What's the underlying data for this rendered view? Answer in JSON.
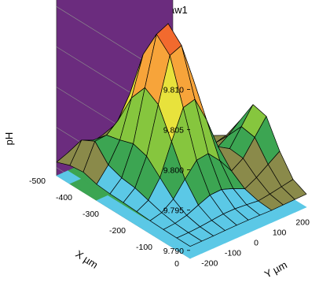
{
  "chart_data": {
    "type": "surface3d",
    "title": "USTB Raw1",
    "zlabel": "pH",
    "xlabel": "X µm",
    "ylabel": "Y µm",
    "z_ticks": [
      "9.790",
      "9.795",
      "9.800",
      "9.805",
      "9.810"
    ],
    "x_ticks": [
      "-500",
      "-400",
      "-300",
      "-200",
      "-100",
      "0"
    ],
    "y_ticks": [
      "-200",
      "-100",
      "0",
      "100",
      "200"
    ],
    "zlim": [
      9.789,
      9.812
    ],
    "xlim": [
      -500,
      0
    ],
    "ylim": [
      -250,
      250
    ],
    "x": [
      -500,
      -450,
      -400,
      -350,
      -300,
      -250,
      -200,
      -150,
      -100,
      -50,
      0
    ],
    "y": [
      -250,
      -200,
      -150,
      -100,
      -50,
      0,
      50,
      100,
      150,
      200,
      250
    ],
    "colormap": [
      "#5bc8e6",
      "#3ca552",
      "#86c63e",
      "#e8e23c",
      "#f7a43a",
      "#f26a2e",
      "#e8262a"
    ],
    "colors": {
      "back_left_wall": "#c6c6c6",
      "back_right_wall": "#6b2c7e",
      "surface_edge": "#000000"
    }
  }
}
